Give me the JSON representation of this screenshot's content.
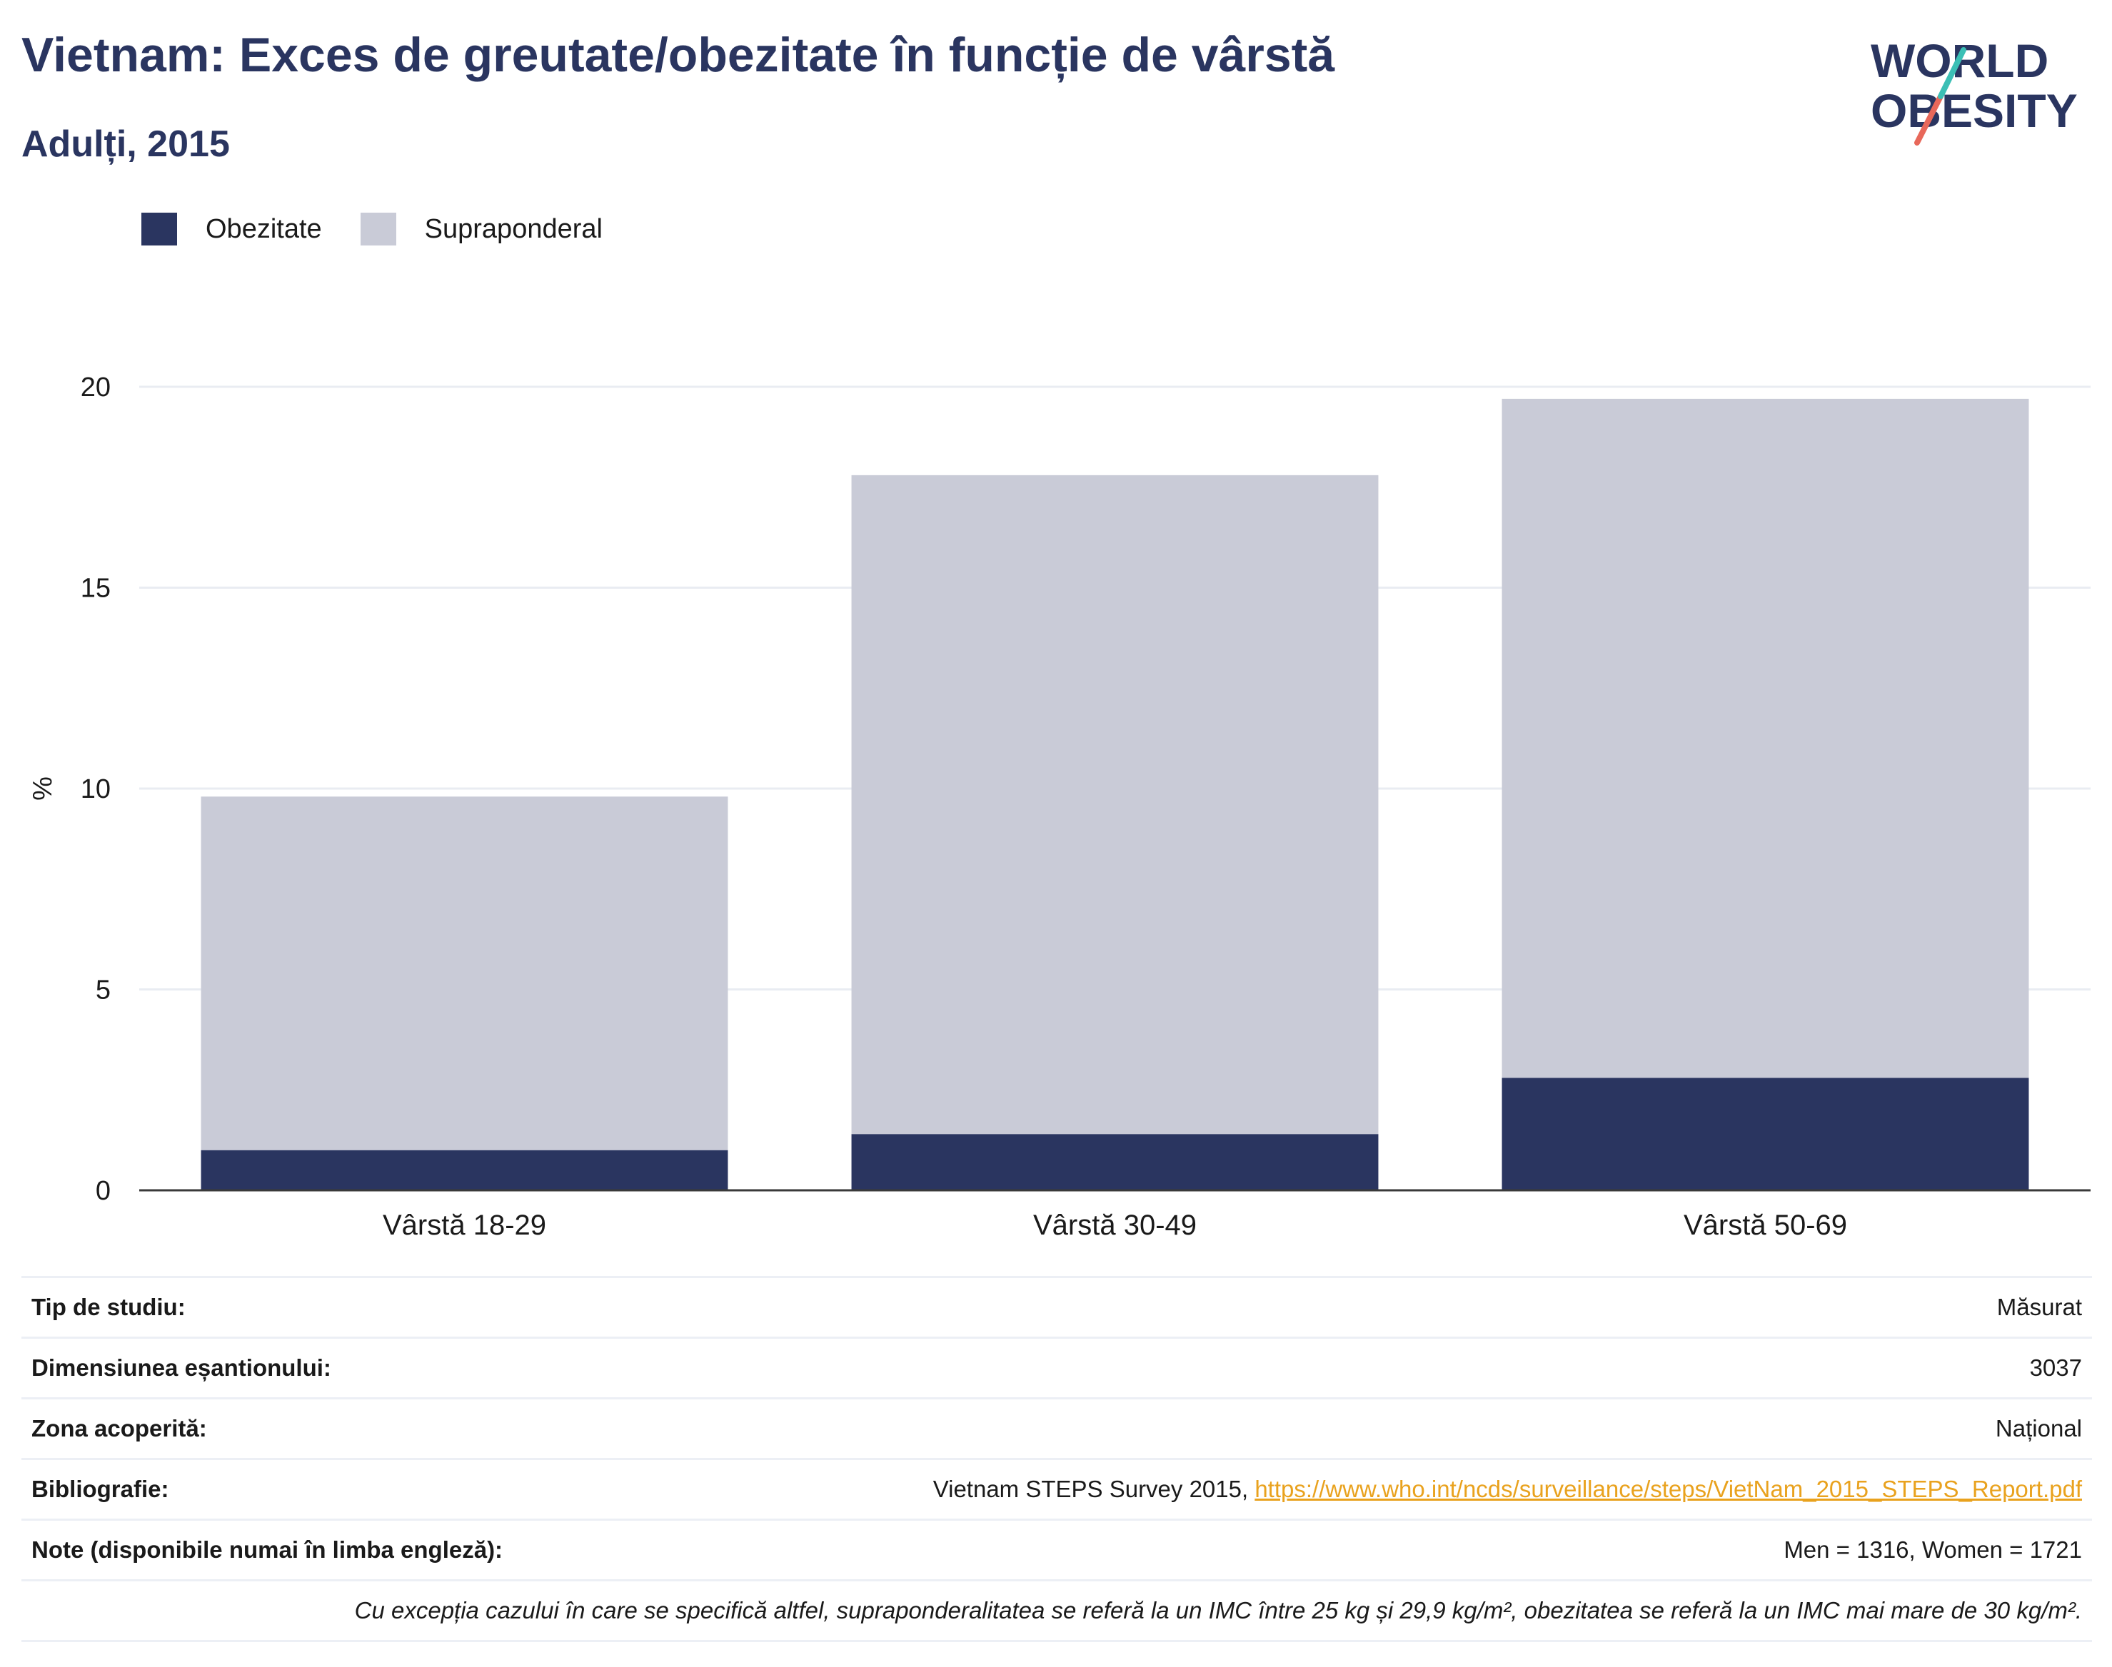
{
  "title": "Vietnam: Exces de greutate/obezitate în funcție de vârstă",
  "subtitle": "Adulți, 2015",
  "logo": {
    "line1": "WORLD",
    "line2": "OBESITY",
    "accent_teal": "#3bbfb5",
    "accent_red": "#e8685a"
  },
  "colors": {
    "obesity": "#2a3560",
    "overweight": "#c9cbd7",
    "title": "#2a3560",
    "link": "#e9a21e"
  },
  "legend": [
    {
      "label": "Obezitate",
      "color": "#2a3560"
    },
    {
      "label": "Supraponderal",
      "color": "#c9cbd7"
    }
  ],
  "chart_data": {
    "type": "bar",
    "stacked": true,
    "categories": [
      "Vârstă 18-29",
      "Vârstă 30-49",
      "Vârstă 50-69"
    ],
    "series": [
      {
        "name": "Obezitate",
        "values": [
          1.0,
          1.4,
          2.8
        ]
      },
      {
        "name": "Supraponderal",
        "values": [
          8.8,
          16.4,
          16.9
        ]
      }
    ],
    "ylabel": "%",
    "ylim": [
      0,
      20
    ],
    "yticks": [
      0,
      5,
      10,
      15,
      20
    ],
    "grid": true,
    "legend_position": "top-left"
  },
  "info": {
    "rows": [
      {
        "label": "Tip de studiu:",
        "value": "Măsurat"
      },
      {
        "label": "Dimensiunea eșantionului:",
        "value": "3037"
      },
      {
        "label": "Zona acoperită:",
        "value": "Național"
      },
      {
        "label": "Bibliografie:",
        "value": "Vietnam STEPS Survey 2015, ",
        "link": "https://www.who.int/ncds/surveillance/steps/VietNam_2015_STEPS_Report.pdf"
      },
      {
        "label": "Note (disponibile numai în limba engleză):",
        "value": "Men = 1316, Women = 1721"
      }
    ],
    "footnote": "Cu excepția cazului în care se specifică altfel, supraponderalitatea se referă la un IMC între 25 kg și 29,9 kg/m², obezitatea se referă la un IMC mai mare de 30 kg/m²."
  }
}
